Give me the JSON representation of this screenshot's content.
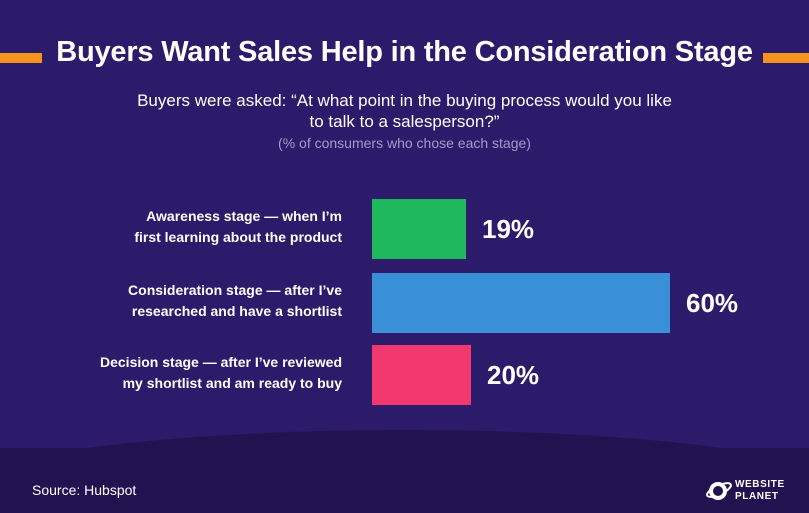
{
  "header": {
    "title": "Buyers Want Sales Help in the Consideration Stage",
    "subtitle_line1": "Buyers were asked: “At what point in the buying process would you like",
    "subtitle_line2": "to talk to a salesperson?”",
    "note": "(% of consumers who chose each stage)"
  },
  "footer": {
    "source": "Source: Hubspot",
    "logo_line1": "WEBSITE",
    "logo_line2": "PLANET",
    "logo_icon": "planet-icon"
  },
  "colors": {
    "background": "#2c1a6b",
    "accent": "#f6921e",
    "bar_awareness": "#1fb85c",
    "bar_consideration": "#3a8fd9",
    "bar_decision": "#f0386f"
  },
  "chart_data": {
    "type": "bar",
    "orientation": "horizontal",
    "categories": [
      {
        "line1": "Awareness stage — when I’m",
        "line2": "first learning about the product"
      },
      {
        "line1": "Consideration stage — after I’ve",
        "line2": "researched and have a shortlist"
      },
      {
        "line1": "Decision stage — after I’ve reviewed",
        "line2": "my shortlist and am ready to buy"
      }
    ],
    "values": [
      19,
      60,
      20
    ],
    "value_labels": [
      "19%",
      "60%",
      "20%"
    ],
    "colors": [
      "#1fb85c",
      "#3a8fd9",
      "#f0386f"
    ],
    "xlim": [
      0,
      60
    ],
    "grid": false
  }
}
